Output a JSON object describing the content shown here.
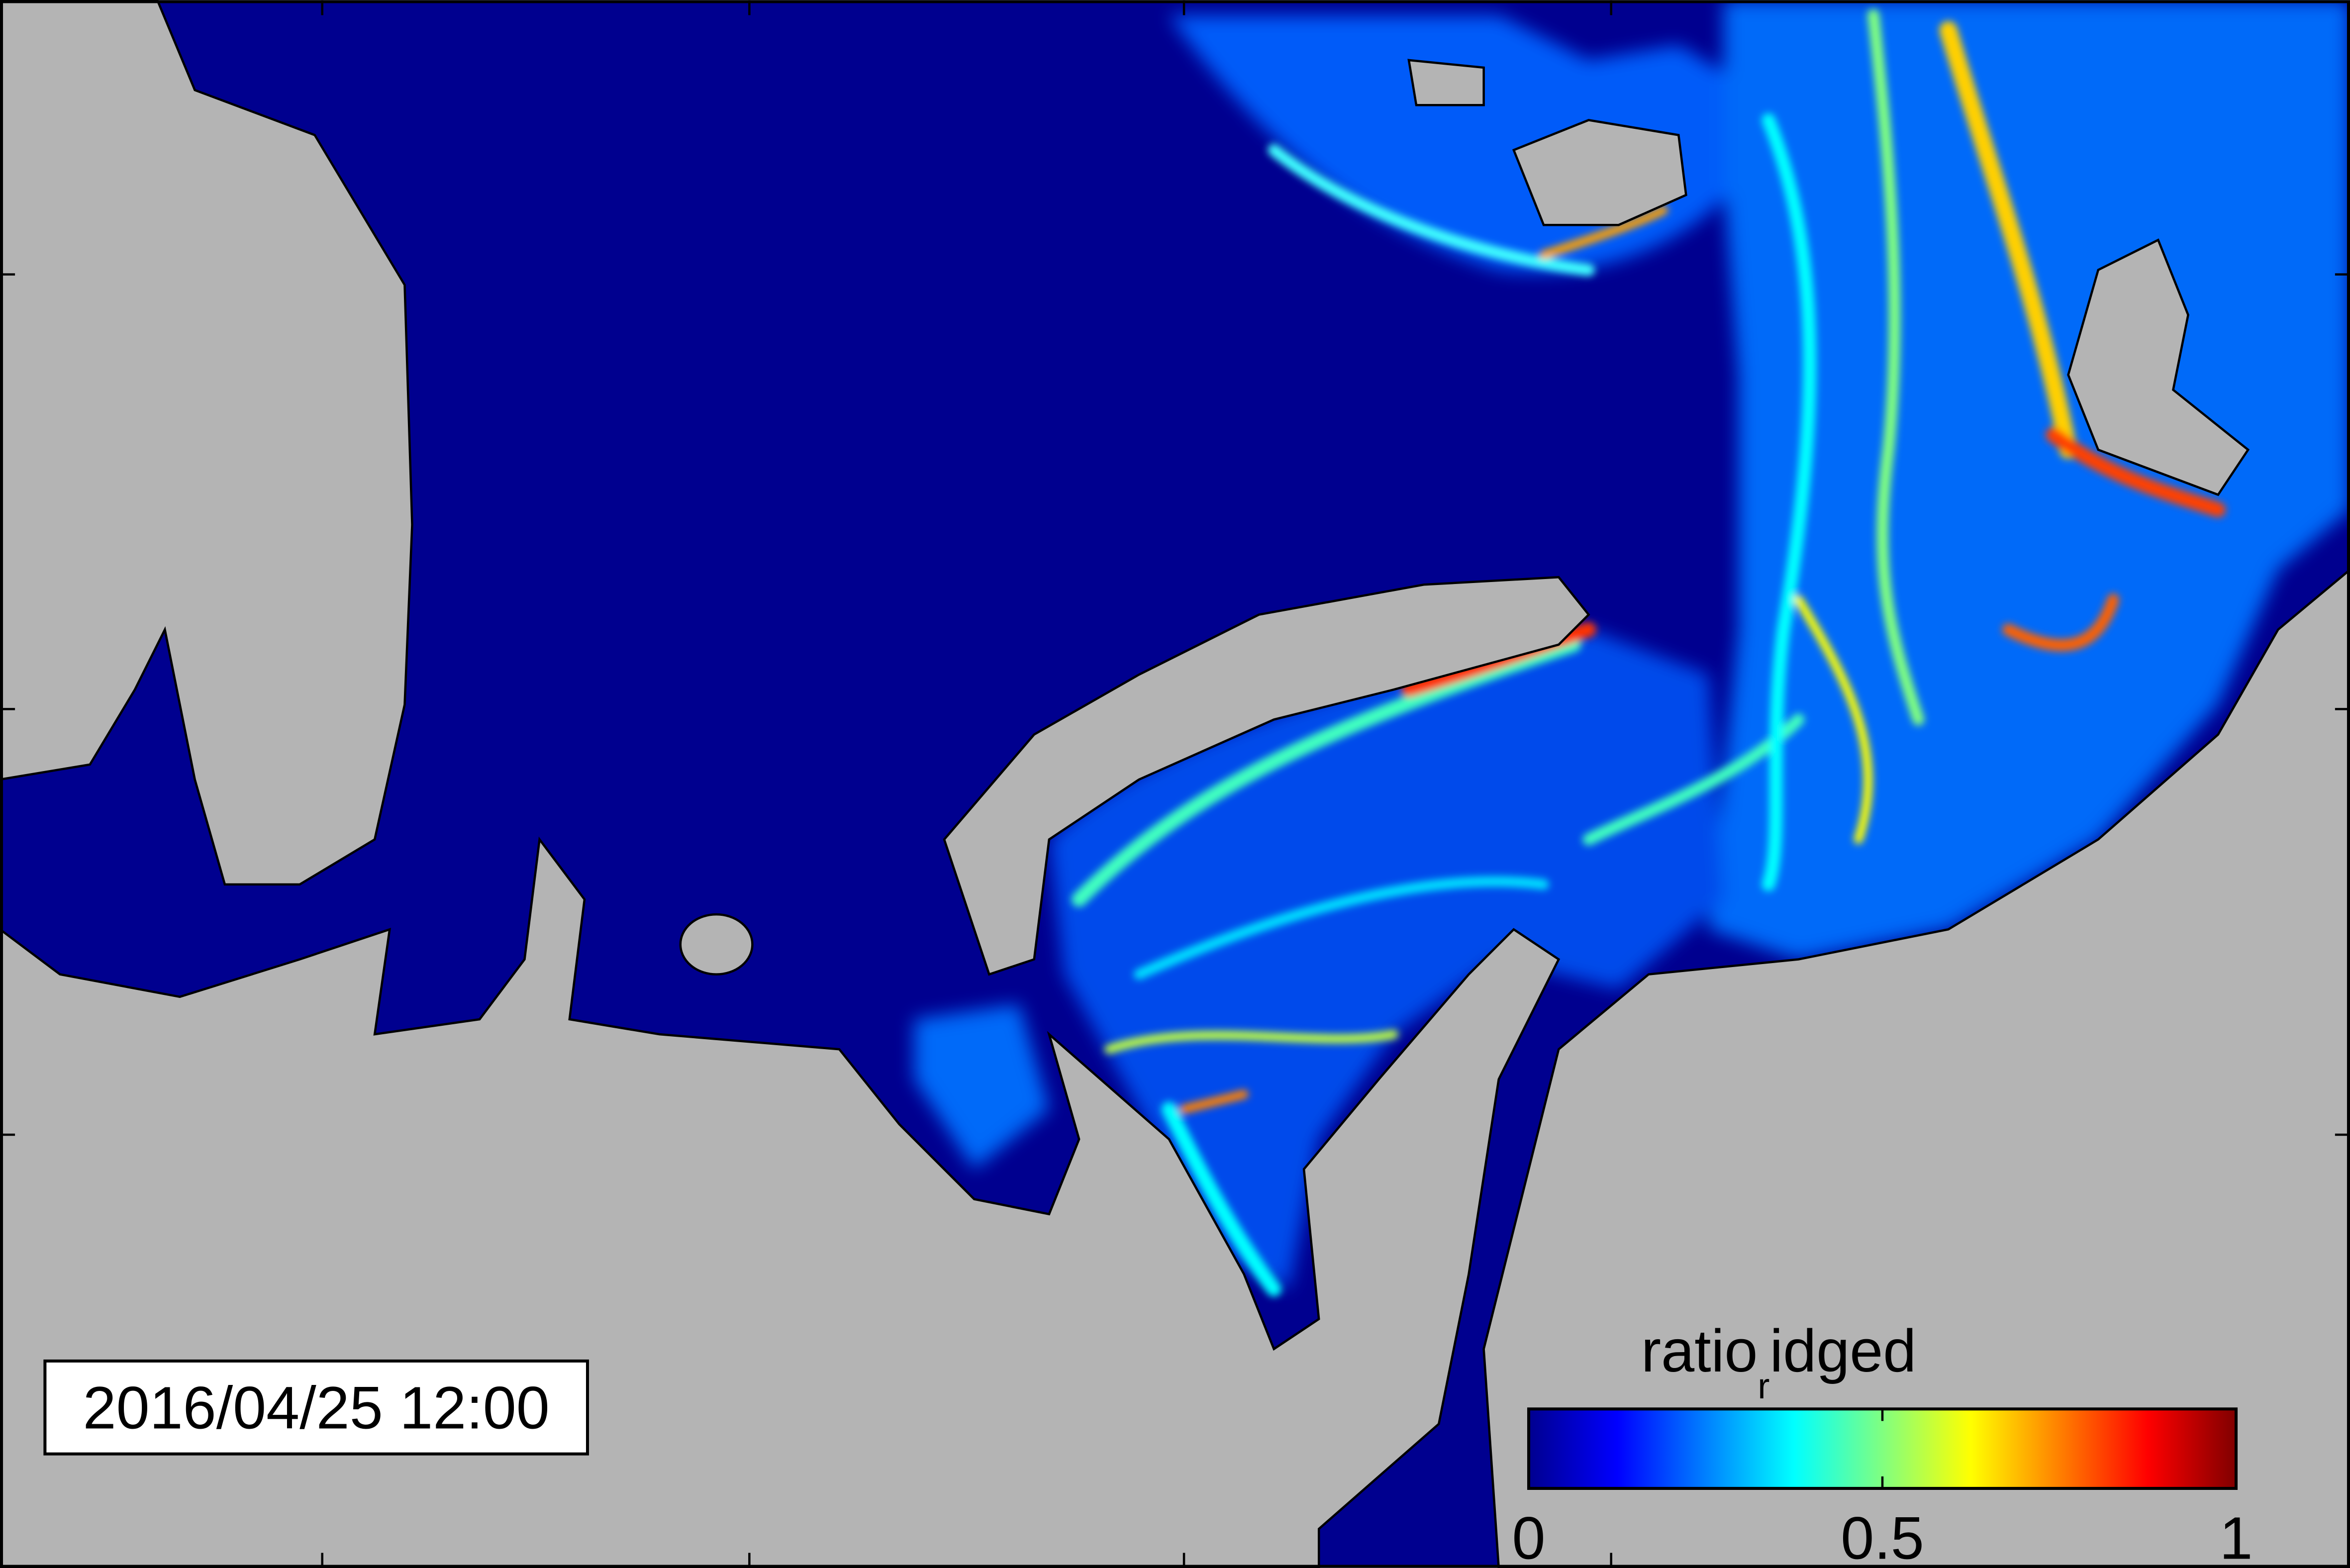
{
  "timestamp": "2016/04/25 12:00",
  "colorbar": {
    "label": "ratio",
    "label_subscript": "r",
    "label_rest": "idged",
    "lim": [
      0,
      1
    ],
    "ticks": [
      0,
      0.5,
      1
    ],
    "colormap": [
      "#00008f",
      "#0000ff",
      "#0080ff",
      "#00ffff",
      "#80ff80",
      "#ffff00",
      "#ff8000",
      "#ff0000",
      "#800000"
    ]
  }
}
